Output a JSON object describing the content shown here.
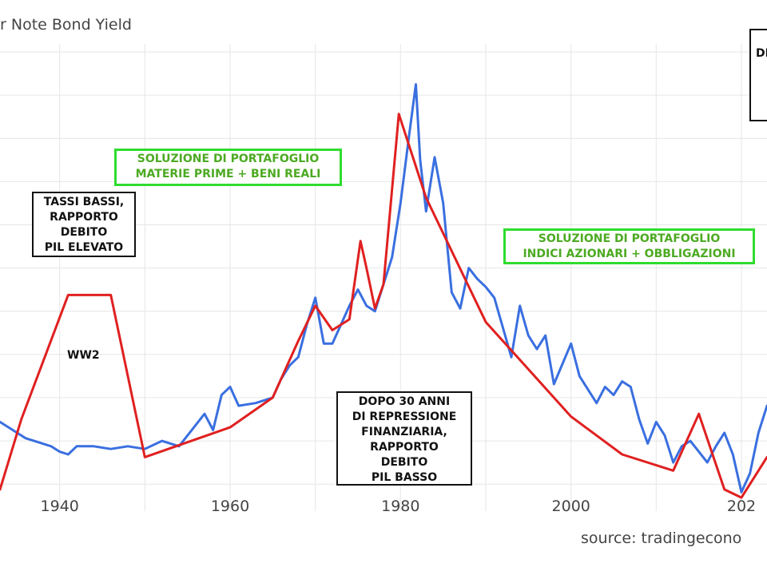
{
  "title": "r Note Bond Yield",
  "source": "source: tradingecono",
  "annotations": {
    "ww2": "WW2",
    "tassi_bassi": "TASSI BASSI,\nRAPPORTO\nDEBITO\nPIL ELEVATO",
    "dopo_30_anni": "DOPO 30 ANNI\nDI REPRESSIONE\nFINANZIARIA,\nRAPPORTO\nDEBITO\nPIL BASSO",
    "soluzione_1": "SOLUZIONE DI PORTAFOGLIO\nMATERIE PRIME  + BENI REALI",
    "soluzione_2": "SOLUZIONE DI PORTAFOGLIO\nINDICI AZIONARI + OBBLIGAZIONI",
    "cut_box": "DI"
  },
  "colors": {
    "yield_line": "#3a6fe0",
    "cycle_line": "#e02020",
    "grid": "#e6e6e6",
    "green_box": "#2fdc2f",
    "green_text": "#4caa22"
  },
  "chart_data": {
    "type": "line",
    "xlabel": "",
    "ylabel": "",
    "x_ticks": [
      "1940",
      "1960",
      "1980",
      "2000",
      "202"
    ],
    "x_range": [
      1933,
      2023
    ],
    "y_range": [
      0,
      17
    ],
    "grid": true,
    "series": [
      {
        "role": "yield",
        "points": [
          [
            1933,
            3.3
          ],
          [
            1934,
            3.1
          ],
          [
            1935,
            2.9
          ],
          [
            1936,
            2.7
          ],
          [
            1937,
            2.6
          ],
          [
            1938,
            2.5
          ],
          [
            1939,
            2.4
          ],
          [
            1940,
            2.2
          ],
          [
            1941,
            2.1
          ],
          [
            1942,
            2.4
          ],
          [
            1944,
            2.4
          ],
          [
            1946,
            2.3
          ],
          [
            1948,
            2.4
          ],
          [
            1950,
            2.3
          ],
          [
            1952,
            2.6
          ],
          [
            1954,
            2.4
          ],
          [
            1955,
            2.8
          ],
          [
            1957,
            3.6
          ],
          [
            1958,
            3.0
          ],
          [
            1959,
            4.3
          ],
          [
            1960,
            4.6
          ],
          [
            1961,
            3.9
          ],
          [
            1963,
            4.0
          ],
          [
            1965,
            4.2
          ],
          [
            1966,
            4.9
          ],
          [
            1967,
            5.4
          ],
          [
            1968,
            5.7
          ],
          [
            1969,
            6.9
          ],
          [
            1970,
            7.9
          ],
          [
            1971,
            6.2
          ],
          [
            1972,
            6.2
          ],
          [
            1973,
            6.9
          ],
          [
            1974,
            7.6
          ],
          [
            1975,
            8.2
          ],
          [
            1976,
            7.6
          ],
          [
            1977,
            7.4
          ],
          [
            1978,
            8.4
          ],
          [
            1979,
            9.4
          ],
          [
            1980,
            11.4
          ],
          [
            1981,
            13.9
          ],
          [
            1981.8,
            15.8
          ],
          [
            1982.3,
            13.0
          ],
          [
            1983,
            11.1
          ],
          [
            1984,
            13.1
          ],
          [
            1985,
            11.4
          ],
          [
            1986,
            8.1
          ],
          [
            1987,
            7.5
          ],
          [
            1988,
            9.0
          ],
          [
            1989,
            8.6
          ],
          [
            1990,
            8.3
          ],
          [
            1991,
            7.9
          ],
          [
            1993,
            5.7
          ],
          [
            1994,
            7.6
          ],
          [
            1995,
            6.5
          ],
          [
            1996,
            6.0
          ],
          [
            1997,
            6.5
          ],
          [
            1998,
            4.7
          ],
          [
            2000,
            6.2
          ],
          [
            2001,
            5.0
          ],
          [
            2002,
            4.5
          ],
          [
            2003,
            4.0
          ],
          [
            2004,
            4.6
          ],
          [
            2005,
            4.3
          ],
          [
            2006,
            4.8
          ],
          [
            2007,
            4.6
          ],
          [
            2008,
            3.4
          ],
          [
            2009,
            2.5
          ],
          [
            2010,
            3.3
          ],
          [
            2011,
            2.8
          ],
          [
            2012,
            1.8
          ],
          [
            2013,
            2.4
          ],
          [
            2014,
            2.6
          ],
          [
            2015,
            2.2
          ],
          [
            2016,
            1.8
          ],
          [
            2017,
            2.4
          ],
          [
            2018,
            2.9
          ],
          [
            2019,
            2.1
          ],
          [
            2020,
            0.7
          ],
          [
            2021,
            1.4
          ],
          [
            2022,
            2.9
          ],
          [
            2023,
            3.9
          ]
        ]
      },
      {
        "role": "cycle",
        "points": [
          [
            1933,
            0.8
          ],
          [
            1935.5,
            3.4
          ],
          [
            1941,
            8.0
          ],
          [
            1946,
            8.0
          ],
          [
            1950,
            2.0
          ],
          [
            1960,
            3.1
          ],
          [
            1965,
            4.2
          ],
          [
            1968,
            6.3
          ],
          [
            1970,
            7.6
          ],
          [
            1972,
            6.7
          ],
          [
            1974,
            7.1
          ],
          [
            1975.3,
            10.0
          ],
          [
            1976,
            9.0
          ],
          [
            1977,
            7.5
          ],
          [
            1978,
            8.4
          ],
          [
            1979.8,
            14.7
          ],
          [
            1983,
            11.6
          ],
          [
            1990,
            7.0
          ],
          [
            2000,
            3.5
          ],
          [
            2006,
            2.1
          ],
          [
            2012,
            1.5
          ],
          [
            2015,
            3.6
          ],
          [
            2018,
            0.8
          ],
          [
            2020,
            0.5
          ],
          [
            2023,
            2.0
          ]
        ]
      }
    ]
  }
}
